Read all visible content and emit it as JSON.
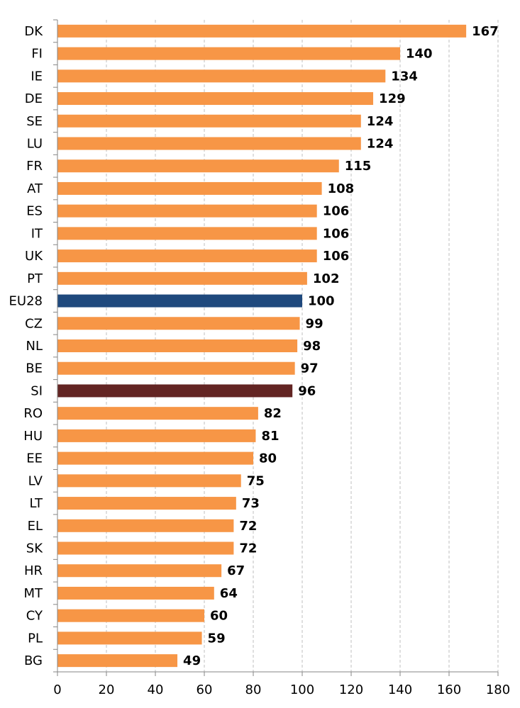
{
  "chart_data": {
    "type": "bar",
    "orientation": "horizontal",
    "title": "",
    "xlabel": "",
    "ylabel": "",
    "xlim": [
      0,
      180
    ],
    "xticks": [
      0,
      20,
      40,
      60,
      80,
      100,
      120,
      140,
      160,
      180
    ],
    "grid": "vertical dashed",
    "legend": "none",
    "categories": [
      "DK",
      "FI",
      "IE",
      "DE",
      "SE",
      "LU",
      "FR",
      "AT",
      "ES",
      "IT",
      "UK",
      "PT",
      "EU28",
      "CZ",
      "NL",
      "BE",
      "SI",
      "RO",
      "HU",
      "EE",
      "LV",
      "LT",
      "EL",
      "SK",
      "HR",
      "MT",
      "CY",
      "PL",
      "BG"
    ],
    "values": [
      167,
      140,
      134,
      129,
      124,
      124,
      115,
      108,
      106,
      106,
      106,
      102,
      100,
      99,
      98,
      97,
      96,
      82,
      81,
      80,
      75,
      73,
      72,
      72,
      67,
      64,
      60,
      59,
      49
    ],
    "colors": {
      "default": "#F79646",
      "EU28": "#1F497D",
      "SI": "#632523"
    }
  }
}
